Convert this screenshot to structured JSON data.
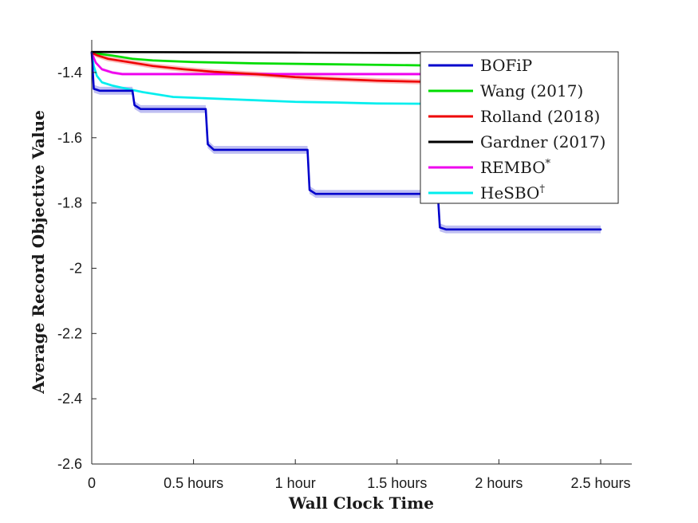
{
  "chart_data": {
    "type": "line",
    "title": "",
    "xlabel": "Wall Clock Time",
    "ylabel": "Average Record Objective Value",
    "xlim": [
      0,
      2.65
    ],
    "ylim": [
      -2.6,
      -1.3
    ],
    "x_ticks": [
      0,
      0.5,
      1,
      1.5,
      2,
      2.5
    ],
    "x_tick_labels": [
      "0",
      "0.5 hours",
      "1 hour",
      "1.5 hours",
      "2 hours",
      "2.5 hours"
    ],
    "y_ticks": [
      -1.4,
      -1.6,
      -1.8,
      -2.0,
      -2.2,
      -2.4,
      -2.6
    ],
    "y_tick_labels": [
      "-1.4",
      "-1.6",
      "-1.8",
      "-2",
      "-2.2",
      "-2.4",
      "-2.6"
    ],
    "grid": false,
    "legend_position": "top-right",
    "series": [
      {
        "name": "BOFiP",
        "color": "#0000cc",
        "band": 0.012,
        "points": [
          [
            0,
            -1.34
          ],
          [
            0.01,
            -1.45
          ],
          [
            0.04,
            -1.456
          ],
          [
            0.2,
            -1.456
          ],
          [
            0.21,
            -1.5
          ],
          [
            0.24,
            -1.512
          ],
          [
            0.56,
            -1.512
          ],
          [
            0.57,
            -1.62
          ],
          [
            0.6,
            -1.637
          ],
          [
            1.06,
            -1.637
          ],
          [
            1.07,
            -1.76
          ],
          [
            1.1,
            -1.772
          ],
          [
            1.7,
            -1.772
          ],
          [
            1.71,
            -1.875
          ],
          [
            1.74,
            -1.881
          ],
          [
            2.5,
            -1.881
          ]
        ]
      },
      {
        "name": "Wang (2017)",
        "color": "#00dd00",
        "band": 0.004,
        "points": [
          [
            0,
            -1.34
          ],
          [
            0.1,
            -1.348
          ],
          [
            0.2,
            -1.358
          ],
          [
            0.3,
            -1.363
          ],
          [
            0.5,
            -1.368
          ],
          [
            0.8,
            -1.372
          ],
          [
            1.2,
            -1.375
          ],
          [
            1.6,
            -1.378
          ],
          [
            1.7,
            -1.379
          ]
        ]
      },
      {
        "name": "Rolland (2018)",
        "color": "#ee0000",
        "band": 0.008,
        "points": [
          [
            0,
            -1.34
          ],
          [
            0.03,
            -1.348
          ],
          [
            0.08,
            -1.358
          ],
          [
            0.2,
            -1.37
          ],
          [
            0.3,
            -1.38
          ],
          [
            0.45,
            -1.39
          ],
          [
            0.6,
            -1.398
          ],
          [
            0.8,
            -1.405
          ],
          [
            1.0,
            -1.414
          ],
          [
            1.2,
            -1.42
          ],
          [
            1.4,
            -1.425
          ],
          [
            1.6,
            -1.428
          ],
          [
            1.7,
            -1.43
          ]
        ]
      },
      {
        "name": "Gardner (2017)",
        "color": "#000000",
        "band": 0,
        "points": [
          [
            0,
            -1.337
          ],
          [
            0.5,
            -1.338
          ],
          [
            1.0,
            -1.339
          ],
          [
            1.5,
            -1.34
          ],
          [
            2.0,
            -1.34
          ],
          [
            2.45,
            -1.34
          ]
        ]
      },
      {
        "name": "REMBO*",
        "color": "#ee00ee",
        "band": 0.005,
        "points": [
          [
            0,
            -1.34
          ],
          [
            0.02,
            -1.37
          ],
          [
            0.05,
            -1.39
          ],
          [
            0.1,
            -1.4
          ],
          [
            0.15,
            -1.405
          ],
          [
            0.3,
            -1.405
          ],
          [
            0.8,
            -1.405
          ],
          [
            1.2,
            -1.405
          ],
          [
            1.7,
            -1.405
          ]
        ]
      },
      {
        "name": "HeSBO†",
        "color": "#00eeee",
        "band": 0.004,
        "points": [
          [
            0,
            -1.34
          ],
          [
            0.01,
            -1.38
          ],
          [
            0.025,
            -1.41
          ],
          [
            0.05,
            -1.43
          ],
          [
            0.1,
            -1.44
          ],
          [
            0.15,
            -1.447
          ],
          [
            0.25,
            -1.46
          ],
          [
            0.4,
            -1.475
          ],
          [
            0.6,
            -1.48
          ],
          [
            0.8,
            -1.485
          ],
          [
            1.0,
            -1.49
          ],
          [
            1.2,
            -1.492
          ],
          [
            1.4,
            -1.495
          ],
          [
            1.7,
            -1.496
          ]
        ]
      }
    ],
    "legend_entries": [
      {
        "base": "BOFiP",
        "sup": ""
      },
      {
        "base": "Wang (2017)",
        "sup": ""
      },
      {
        "base": "Rolland (2018)",
        "sup": ""
      },
      {
        "base": "Gardner (2017)",
        "sup": ""
      },
      {
        "base": "REMBO",
        "sup": "*"
      },
      {
        "base": "HeSBO",
        "sup": "†"
      }
    ]
  }
}
